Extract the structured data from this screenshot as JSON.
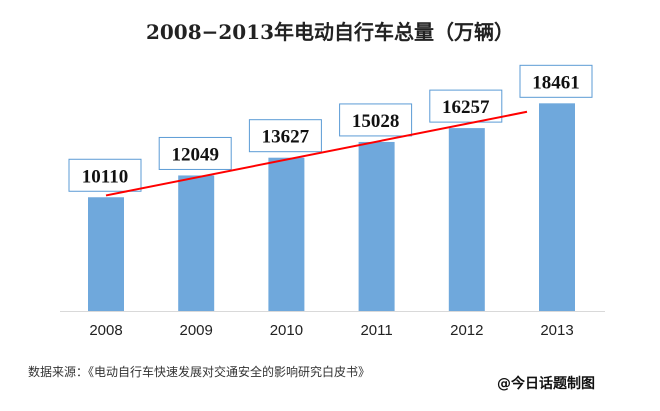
{
  "chart_data": {
    "type": "bar",
    "title": "2008−2013年电动自行车总量（万辆）",
    "categories": [
      "2008",
      "2009",
      "2010",
      "2011",
      "2012",
      "2013"
    ],
    "values": [
      10110,
      12049,
      13627,
      15028,
      16257,
      18461
    ],
    "ylim": [
      0,
      20000
    ],
    "grid": false,
    "data_labels": true,
    "trendline": "linear",
    "colors": {
      "bar": "#6fa8dc",
      "trend": "#ff0000",
      "label_border": "#5b9bd5"
    }
  },
  "footer": {
    "source": "数据来源：《电动自行车快速发展对交通安全的影响研究白皮书》",
    "credit": "@今日话题制图"
  }
}
